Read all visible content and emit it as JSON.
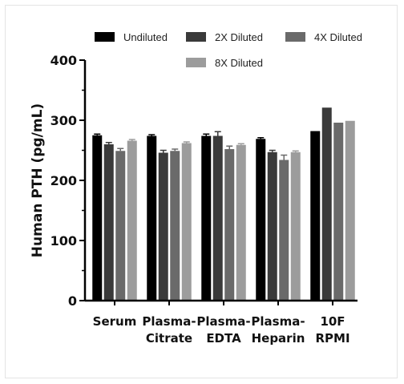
{
  "chart_data": {
    "type": "bar",
    "title": "",
    "xlabel": "",
    "ylabel": "Human PTH (pg/mL)",
    "ylim": [
      0,
      400
    ],
    "yticks": [
      "0",
      "100",
      "200",
      "300",
      "400"
    ],
    "categories": [
      [
        "Serum"
      ],
      [
        "Plasma-",
        "Citrate"
      ],
      [
        "Plasma-",
        "EDTA"
      ],
      [
        "Plasma-",
        "Heparin"
      ],
      [
        "10F",
        "RPMI"
      ]
    ],
    "series": [
      {
        "name": "Undiluted",
        "color": "#000000",
        "values": [
          275,
          274,
          274,
          269,
          282
        ],
        "errors": [
          2,
          2,
          3,
          2,
          0
        ]
      },
      {
        "name": "2X Diluted",
        "color": "#3a3a3a",
        "values": [
          260,
          246,
          274,
          247,
          321
        ],
        "errors": [
          3,
          4,
          7,
          3,
          0
        ]
      },
      {
        "name": "4X Diluted",
        "color": "#6a6a6a",
        "values": [
          249,
          249,
          252,
          234,
          296
        ],
        "errors": [
          4,
          3,
          5,
          8,
          0
        ]
      },
      {
        "name": "8X Diluted",
        "color": "#9c9c9c",
        "values": [
          266,
          262,
          259,
          247,
          299
        ],
        "errors": [
          2,
          2,
          2,
          2,
          0
        ]
      }
    ],
    "legend_position": "top",
    "grid": false
  }
}
